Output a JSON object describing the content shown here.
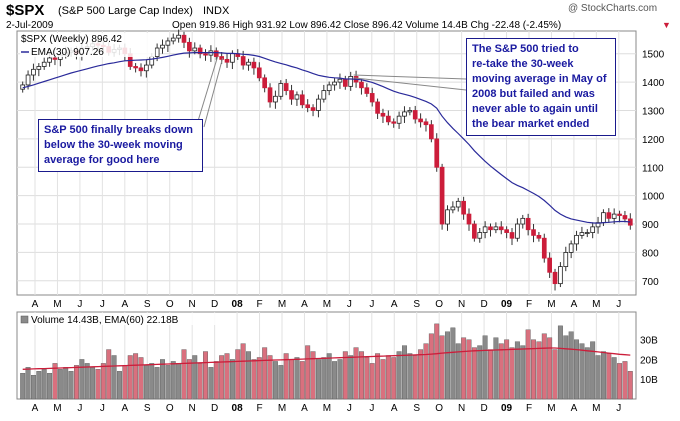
{
  "header": {
    "symbol": "$SPX",
    "index_name": "(S&P 500 Large Cap Index)",
    "exchange": "INDX",
    "date": "2-Jul-2009",
    "quote": "Open 919.86  High 931.92  Low 896.42  Close 896.42  Volume 14.4B  Chg -22.48 (-2.45%)",
    "down_arrow": "▼",
    "watermark": "@ StockCharts.com"
  },
  "colors": {
    "up": "#ffffff",
    "down": "#cc1d3a",
    "ema_price": "#2a2a9a",
    "ema_volume": "#cc1d3a",
    "vol_down": "#d9707e",
    "vol_up": "#8a8a8a",
    "annotation": "#1a1aa0"
  },
  "annotations": {
    "left": [
      "S&P 500 finally breaks down",
      "below the 30-week moving",
      "average for good here"
    ],
    "right": [
      "The S&P 500 tried to",
      "re-take the 30-week",
      "moving average in May of",
      "2008 but failed and was",
      "never able to again until",
      "the bear market ended"
    ]
  },
  "chart_data": [
    {
      "type": "candlestick",
      "legend": [
        "$SPX (Weekly) 896.42",
        "EMA(30) 907.26"
      ],
      "ylim": [
        650,
        1580
      ],
      "y_ticks": [
        700,
        800,
        900,
        1000,
        1100,
        1200,
        1300,
        1400,
        1500
      ],
      "x_tick_labels": [
        "A",
        "M",
        "J",
        "J",
        "A",
        "S",
        "O",
        "N",
        "D",
        "08",
        "F",
        "M",
        "A",
        "M",
        "J",
        "J",
        "A",
        "S",
        "O",
        "N",
        "D",
        "09",
        "F",
        "M",
        "A",
        "M",
        "J"
      ],
      "close": [
        1390,
        1425,
        1445,
        1455,
        1470,
        1485,
        1480,
        1495,
        1505,
        1510,
        1500,
        1520,
        1525,
        1535,
        1530,
        1525,
        1505,
        1515,
        1520,
        1500,
        1455,
        1450,
        1440,
        1460,
        1490,
        1520,
        1530,
        1545,
        1555,
        1565,
        1540,
        1510,
        1520,
        1500,
        1495,
        1510,
        1490,
        1480,
        1470,
        1500,
        1490,
        1460,
        1470,
        1450,
        1415,
        1380,
        1330,
        1350,
        1395,
        1370,
        1340,
        1355,
        1320,
        1310,
        1300,
        1340,
        1370,
        1390,
        1400,
        1410,
        1385,
        1420,
        1400,
        1380,
        1360,
        1330,
        1290,
        1280,
        1260,
        1255,
        1280,
        1295,
        1300,
        1270,
        1260,
        1250,
        1200,
        1100,
        900,
        950,
        960,
        980,
        935,
        900,
        850,
        870,
        890,
        880,
        890,
        880,
        870,
        850,
        900,
        920,
        880,
        860,
        850,
        780,
        730,
        690,
        750,
        800,
        830,
        860,
        870,
        870,
        890,
        905,
        940,
        920,
        935,
        930,
        918,
        896
      ],
      "ema": [
        1380,
        1385,
        1390,
        1396,
        1402,
        1408,
        1414,
        1420,
        1426,
        1432,
        1437,
        1442,
        1447,
        1452,
        1457,
        1461,
        1465,
        1468,
        1472,
        1475,
        1476,
        1477,
        1478,
        1479,
        1481,
        1484,
        1487,
        1491,
        1495,
        1499,
        1502,
        1503,
        1504,
        1504,
        1504,
        1504,
        1504,
        1503,
        1501,
        1501,
        1500,
        1498,
        1497,
        1494,
        1490,
        1484,
        1477,
        1471,
        1466,
        1461,
        1455,
        1450,
        1443,
        1437,
        1430,
        1424,
        1420,
        1417,
        1415,
        1414,
        1411,
        1411,
        1410,
        1408,
        1404,
        1399,
        1392,
        1384,
        1376,
        1368,
        1362,
        1357,
        1352,
        1346,
        1339,
        1332,
        1323,
        1308,
        1280,
        1257,
        1237,
        1219,
        1200,
        1180,
        1158,
        1139,
        1121,
        1104,
        1089,
        1074,
        1060,
        1046,
        1036,
        1028,
        1018,
        1008,
        997,
        983,
        966,
        948,
        935,
        925,
        918,
        914,
        910,
        906,
        904,
        903,
        905,
        906,
        908,
        909,
        909,
        907
      ]
    },
    {
      "type": "bar",
      "legend": "Volume 14.43B, EMA(60) 22.18B",
      "ylim": [
        0,
        44
      ],
      "y_ticks": [
        "10B",
        "20B",
        "30B"
      ],
      "values": [
        13,
        16,
        12,
        14,
        15,
        13,
        18,
        15,
        16,
        14,
        17,
        20,
        18,
        16,
        15,
        18,
        25,
        22,
        14,
        17,
        22,
        23,
        21,
        17,
        18,
        16,
        20,
        17,
        19,
        18,
        25,
        20,
        22,
        18,
        24,
        16,
        19,
        22,
        23,
        20,
        25,
        28,
        24,
        20,
        21,
        26,
        22,
        19,
        17,
        23,
        20,
        21,
        19,
        27,
        24,
        20,
        21,
        23,
        19,
        20,
        24,
        22,
        26,
        24,
        21,
        18,
        23,
        20,
        22,
        21,
        24,
        27,
        23,
        22,
        25,
        28,
        33,
        38,
        32,
        34,
        36,
        28,
        31,
        30,
        26,
        27,
        32,
        25,
        31,
        28,
        30,
        26,
        29,
        27,
        35,
        30,
        29,
        33,
        31,
        25,
        37,
        32,
        34,
        30,
        28,
        26,
        29,
        22,
        24,
        23,
        21,
        18,
        19,
        14
      ],
      "ema": [
        15,
        15.1,
        15.2,
        15.3,
        15.4,
        15.5,
        15.6,
        15.7,
        15.8,
        15.9,
        16,
        16.1,
        16.2,
        16.3,
        16.4,
        16.5,
        16.6,
        16.7,
        16.8,
        16.9,
        17,
        17.1,
        17.2,
        17.3,
        17.4,
        17.5,
        17.6,
        17.7,
        17.8,
        17.9,
        18,
        18.1,
        18.2,
        18.3,
        18.4,
        18.5,
        18.6,
        18.7,
        18.8,
        18.9,
        19,
        19.1,
        19.2,
        19.3,
        19.4,
        19.5,
        19.6,
        19.7,
        19.8,
        19.9,
        20,
        20.1,
        20.2,
        20.3,
        20.4,
        20.5,
        20.6,
        20.7,
        20.8,
        20.9,
        21,
        21.1,
        21.2,
        21.3,
        21.4,
        21.5,
        21.6,
        21.7,
        21.8,
        21.9,
        22,
        22.1,
        22.2,
        22.3,
        22.4,
        22.5,
        22.7,
        22.9,
        23.2,
        23.4,
        23.6,
        23.8,
        24,
        24.2,
        24.4,
        24.5,
        24.6,
        24.7,
        24.8,
        24.9,
        25,
        25.1,
        25.2,
        25.3,
        25.4,
        25.5,
        25.6,
        25.7,
        25.8,
        25.8,
        25.6,
        25.4,
        25.2,
        25,
        24.7,
        24.4,
        24.1,
        23.8,
        23.5,
        23.2,
        22.9,
        22.6,
        22.4,
        22.18
      ]
    }
  ]
}
